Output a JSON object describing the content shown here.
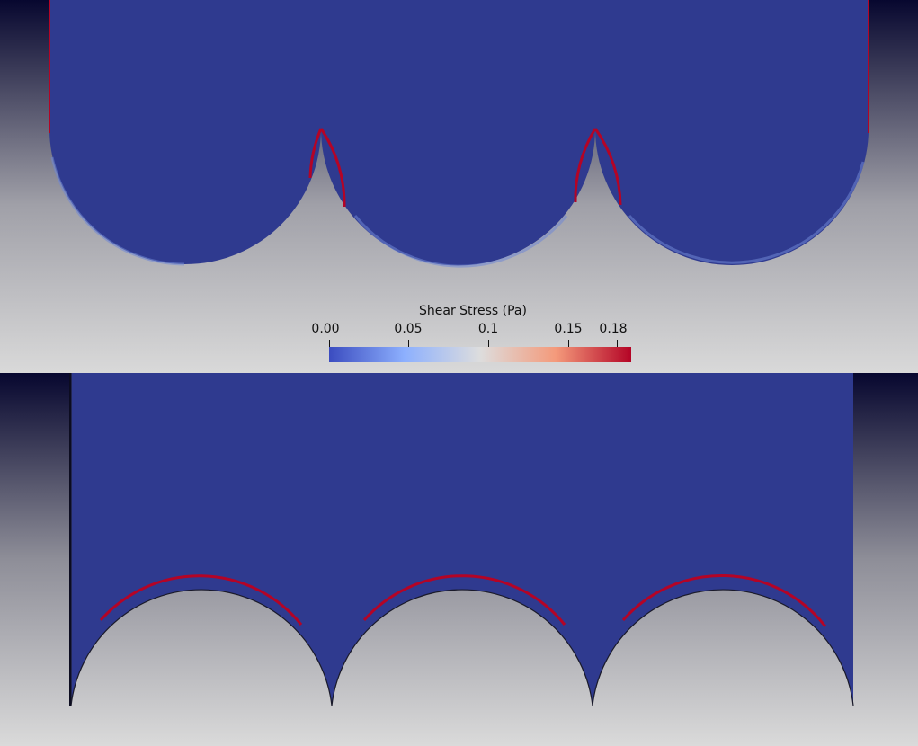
{
  "colorbar": {
    "title": "Shear Stress (Pa)",
    "ticks": [
      {
        "label": "0.00",
        "value": 0.0
      },
      {
        "label": "0.05",
        "value": 0.05
      },
      {
        "label": "0.1",
        "value": 0.1
      },
      {
        "label": "0.15",
        "value": 0.15
      },
      {
        "label": "0.18",
        "value": 0.18
      }
    ],
    "range": [
      0.0,
      0.188
    ],
    "colormap": [
      "#3b4cc0",
      "#8db0fe",
      "#dddddd",
      "#f49a7b",
      "#b40426"
    ]
  },
  "colors": {
    "field_low": "#2f3a8f",
    "wall_high": "#b40426",
    "background_top": "#0a0a3a",
    "background_bottom": "#d8d8d8"
  },
  "views": [
    {
      "name": "top-view"
    },
    {
      "name": "bottom-view"
    }
  ]
}
